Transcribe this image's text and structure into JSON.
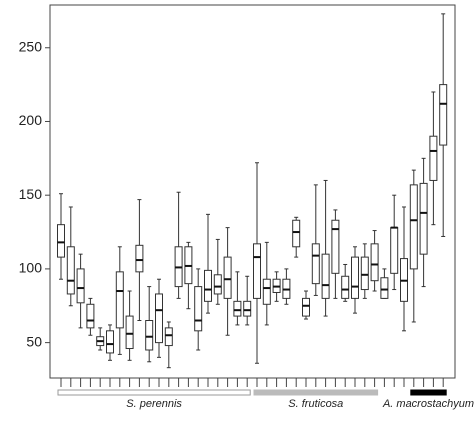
{
  "chart_data": {
    "type": "box",
    "categories": [
      null,
      null,
      null,
      null,
      null,
      null,
      null,
      null,
      null,
      null,
      null,
      null,
      null,
      null,
      null,
      null,
      null,
      null,
      null,
      null,
      null,
      null,
      null,
      null,
      null,
      null,
      null,
      null,
      null,
      null,
      null,
      null,
      null,
      null,
      null,
      null,
      null,
      null,
      null,
      null
    ],
    "boxes": [
      {
        "min": 93,
        "q1": 108,
        "median": 118,
        "q3": 130,
        "max": 151
      },
      {
        "min": 75,
        "q1": 83,
        "median": 92,
        "q3": 115,
        "max": 142
      },
      {
        "min": 60,
        "q1": 77,
        "median": 87,
        "q3": 100,
        "max": 110
      },
      {
        "min": 55,
        "q1": 60,
        "median": 65,
        "q3": 76,
        "max": 80
      },
      {
        "min": 45,
        "q1": 48,
        "median": 51,
        "q3": 54,
        "max": 60
      },
      {
        "min": 38,
        "q1": 43,
        "median": 49,
        "q3": 58,
        "max": 62
      },
      {
        "min": 42,
        "q1": 60,
        "median": 85,
        "q3": 98,
        "max": 115
      },
      {
        "min": 38,
        "q1": 46,
        "median": 56,
        "q3": 68,
        "max": 85
      },
      {
        "min": 65,
        "q1": 98,
        "median": 106,
        "q3": 116,
        "max": 147
      },
      {
        "min": 37,
        "q1": 45,
        "median": 54,
        "q3": 65,
        "max": 88
      },
      {
        "min": 40,
        "q1": 50,
        "median": 72,
        "q3": 83,
        "max": 93
      },
      {
        "min": 33,
        "q1": 48,
        "median": 55,
        "q3": 60,
        "max": 64
      },
      {
        "min": 80,
        "q1": 88,
        "median": 101,
        "q3": 115,
        "max": 152
      },
      {
        "min": 73,
        "q1": 90,
        "median": 102,
        "q3": 115,
        "max": 118
      },
      {
        "min": 45,
        "q1": 58,
        "median": 65,
        "q3": 88,
        "max": 100
      },
      {
        "min": 70,
        "q1": 78,
        "median": 86,
        "q3": 99,
        "max": 137
      },
      {
        "min": 76,
        "q1": 83,
        "median": 88,
        "q3": 96,
        "max": 120
      },
      {
        "min": 55,
        "q1": 80,
        "median": 93,
        "q3": 108,
        "max": 128
      },
      {
        "min": 62,
        "q1": 68,
        "median": 72,
        "q3": 78,
        "max": 98
      },
      {
        "min": 62,
        "q1": 68,
        "median": 72,
        "q3": 78,
        "max": 95
      },
      {
        "min": 36,
        "q1": 80,
        "median": 108,
        "q3": 117,
        "max": 172
      },
      {
        "min": 62,
        "q1": 76,
        "median": 87,
        "q3": 93,
        "max": 118
      },
      {
        "min": 78,
        "q1": 84,
        "median": 88,
        "q3": 93,
        "max": 98
      },
      {
        "min": 76,
        "q1": 80,
        "median": 86,
        "q3": 93,
        "max": 100
      },
      {
        "min": 108,
        "q1": 115,
        "median": 125,
        "q3": 133,
        "max": 135
      },
      {
        "min": 66,
        "q1": 68,
        "median": 75,
        "q3": 80,
        "max": 85
      },
      {
        "min": 82,
        "q1": 90,
        "median": 109,
        "q3": 117,
        "max": 157
      },
      {
        "min": 68,
        "q1": 80,
        "median": 89,
        "q3": 110,
        "max": 160
      },
      {
        "min": 80,
        "q1": 97,
        "median": 127,
        "q3": 133,
        "max": 140
      },
      {
        "min": 78,
        "q1": 80,
        "median": 86,
        "q3": 95,
        "max": 103
      },
      {
        "min": 70,
        "q1": 80,
        "median": 88,
        "q3": 108,
        "max": 115
      },
      {
        "min": 80,
        "q1": 86,
        "median": 96,
        "q3": 108,
        "max": 117
      },
      {
        "min": 85,
        "q1": 92,
        "median": 103,
        "q3": 117,
        "max": 126
      },
      {
        "min": 80,
        "q1": 80,
        "median": 86,
        "q3": 94,
        "max": 100
      },
      {
        "min": 86,
        "q1": 97,
        "median": 128,
        "q3": 128,
        "max": 150
      },
      {
        "min": 58,
        "q1": 78,
        "median": 92,
        "q3": 107,
        "max": 142
      },
      {
        "min": 64,
        "q1": 100,
        "median": 133,
        "q3": 157,
        "max": 167
      },
      {
        "min": 88,
        "q1": 110,
        "median": 138,
        "q3": 158,
        "max": 175
      },
      {
        "min": 130,
        "q1": 160,
        "median": 180,
        "q3": 190,
        "max": 220
      },
      {
        "min": 122,
        "q1": 184,
        "median": 212,
        "q3": 225,
        "max": 273
      }
    ],
    "groups": [
      {
        "name": "S. perennis",
        "color": "#ffffff",
        "first": 0,
        "last": 19
      },
      {
        "name": "S. fruticosa",
        "color": "#bbbbbb",
        "first": 20,
        "last": 32
      },
      {
        "name": "A. macrostachyum",
        "color": "#000000",
        "first": 36,
        "last": 39
      }
    ],
    "ylim": [
      26,
      279
    ],
    "yticks": [
      50,
      100,
      150,
      200,
      250
    ]
  }
}
